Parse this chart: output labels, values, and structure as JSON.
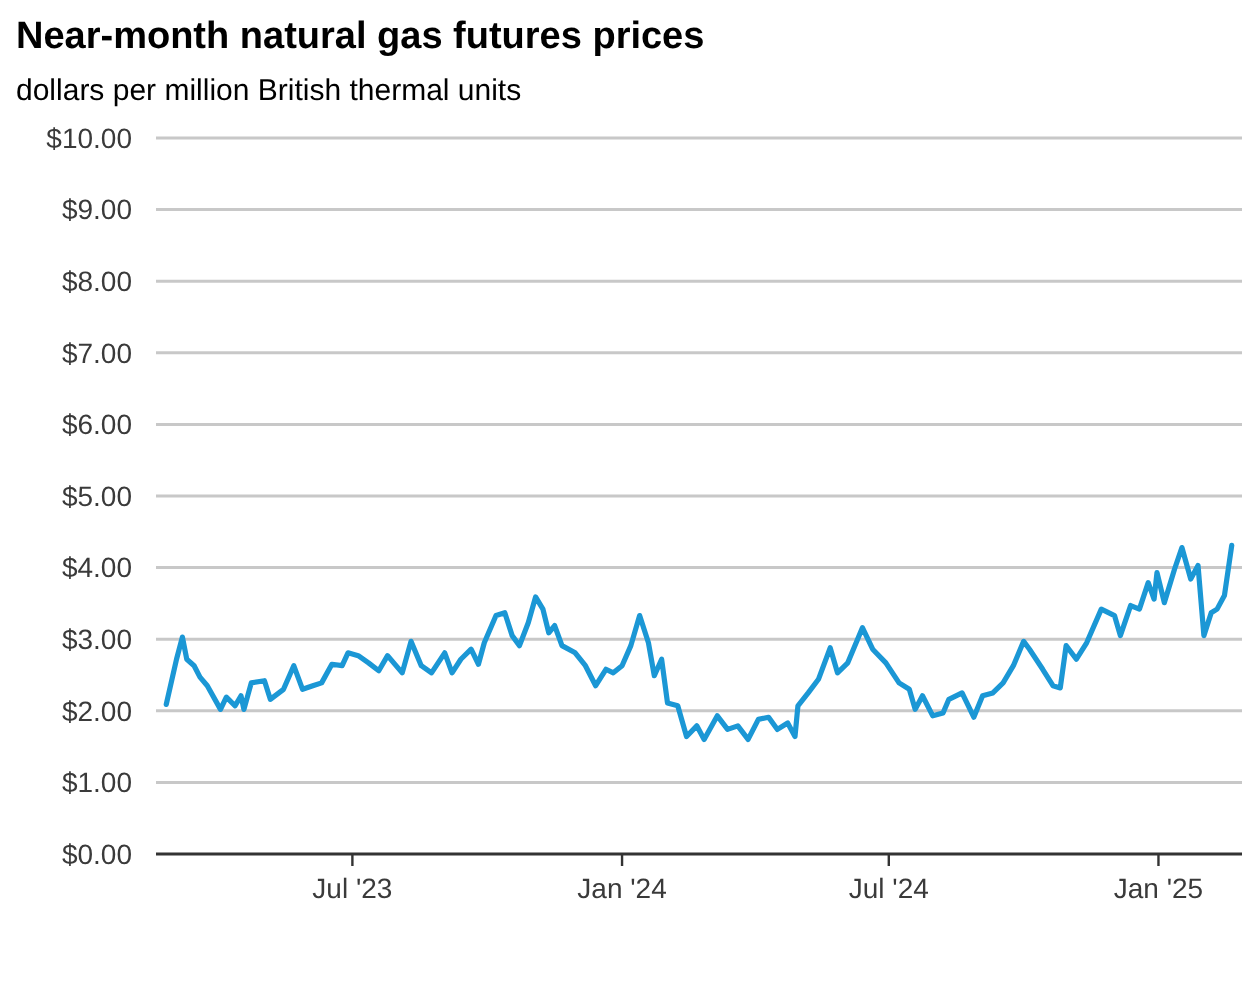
{
  "chart_data": {
    "type": "line",
    "title": "Near-month natural gas futures prices",
    "subtitle": "dollars per million British thermal units",
    "x": [
      "2023-02-24",
      "2023-03-03",
      "2023-03-07",
      "2023-03-10",
      "2023-03-15",
      "2023-03-19",
      "2023-03-24",
      "2023-04-02",
      "2023-04-06",
      "2023-04-12",
      "2023-04-16",
      "2023-04-18",
      "2023-04-23",
      "2023-05-02",
      "2023-05-06",
      "2023-05-15",
      "2023-05-22",
      "2023-05-28",
      "2023-06-04",
      "2023-06-10",
      "2023-06-17",
      "2023-06-24",
      "2023-06-28",
      "2023-07-05",
      "2023-07-12",
      "2023-07-19",
      "2023-07-25",
      "2023-08-04",
      "2023-08-10",
      "2023-08-17",
      "2023-08-24",
      "2023-09-02",
      "2023-09-07",
      "2023-09-13",
      "2023-09-20",
      "2023-09-25",
      "2023-09-29",
      "2023-10-07",
      "2023-10-13",
      "2023-10-18",
      "2023-10-23",
      "2023-10-29",
      "2023-11-03",
      "2023-11-08",
      "2023-11-12",
      "2023-11-16",
      "2023-11-21",
      "2023-11-30",
      "2023-12-07",
      "2023-12-14",
      "2023-12-21",
      "2023-12-26",
      "2024-01-01",
      "2024-01-07",
      "2024-01-13",
      "2024-01-19",
      "2024-01-23",
      "2024-01-28",
      "2024-02-01",
      "2024-02-08",
      "2024-02-14",
      "2024-02-21",
      "2024-02-26",
      "2024-03-06",
      "2024-03-13",
      "2024-03-20",
      "2024-03-27",
      "2024-04-03",
      "2024-04-10",
      "2024-04-16",
      "2024-04-23",
      "2024-04-28",
      "2024-04-30",
      "2024-05-07",
      "2024-05-14",
      "2024-05-22",
      "2024-05-27",
      "2024-06-03",
      "2024-06-13",
      "2024-06-20",
      "2024-06-29",
      "2024-07-08",
      "2024-07-15",
      "2024-07-19",
      "2024-07-24",
      "2024-07-31",
      "2024-08-07",
      "2024-08-11",
      "2024-08-20",
      "2024-08-28",
      "2024-09-03",
      "2024-09-10",
      "2024-09-17",
      "2024-09-24",
      "2024-10-01",
      "2024-10-05",
      "2024-10-14",
      "2024-10-21",
      "2024-10-26",
      "2024-10-30",
      "2024-11-06",
      "2024-11-13",
      "2024-11-23",
      "2024-12-02",
      "2024-12-06",
      "2024-12-13",
      "2024-12-19",
      "2024-12-25",
      "2024-12-29",
      "2024-12-31",
      "2025-01-05",
      "2025-01-12",
      "2025-01-17",
      "2025-01-23",
      "2025-01-28",
      "2025-02-01",
      "2025-02-06",
      "2025-02-10",
      "2025-02-15",
      "2025-02-20"
    ],
    "series": [
      {
        "color": "#1b97d5",
        "values": [
          2.09,
          2.72,
          3.03,
          2.72,
          2.63,
          2.47,
          2.35,
          2.02,
          2.19,
          2.07,
          2.21,
          2.02,
          2.39,
          2.42,
          2.16,
          2.3,
          2.63,
          2.3,
          2.35,
          2.39,
          2.65,
          2.63,
          2.81,
          2.77,
          2.67,
          2.56,
          2.77,
          2.53,
          2.97,
          2.63,
          2.53,
          2.81,
          2.53,
          2.72,
          2.86,
          2.65,
          2.95,
          3.33,
          3.37,
          3.05,
          2.91,
          3.23,
          3.59,
          3.42,
          3.09,
          3.19,
          2.91,
          2.81,
          2.63,
          2.35,
          2.58,
          2.53,
          2.63,
          2.91,
          3.33,
          2.95,
          2.49,
          2.72,
          2.11,
          2.07,
          1.64,
          1.79,
          1.6,
          1.93,
          1.74,
          1.79,
          1.6,
          1.88,
          1.91,
          1.74,
          1.83,
          1.64,
          2.07,
          2.25,
          2.44,
          2.88,
          2.53,
          2.67,
          3.16,
          2.86,
          2.67,
          2.39,
          2.3,
          2.02,
          2.21,
          1.93,
          1.97,
          2.16,
          2.25,
          1.91,
          2.21,
          2.25,
          2.39,
          2.63,
          2.97,
          2.86,
          2.58,
          2.35,
          2.32,
          2.91,
          2.72,
          2.95,
          3.42,
          3.33,
          3.05,
          3.47,
          3.42,
          3.79,
          3.56,
          3.93,
          3.51,
          3.98,
          4.28,
          3.84,
          4.03,
          3.05,
          3.37,
          3.42,
          3.61,
          4.31
        ]
      }
    ],
    "xlim": [
      "2023-02-17",
      "2025-02-27"
    ],
    "xticks": [
      {
        "value": "2023-07-01",
        "label": "Jul '23"
      },
      {
        "value": "2024-01-01",
        "label": "Jan '24"
      },
      {
        "value": "2024-07-01",
        "label": "Jul '24"
      },
      {
        "value": "2025-01-01",
        "label": "Jan '25"
      }
    ],
    "ylim": [
      0,
      10
    ],
    "yticks": [
      {
        "value": 0,
        "label": "$0.00"
      },
      {
        "value": 1,
        "label": "$1.00"
      },
      {
        "value": 2,
        "label": "$2.00"
      },
      {
        "value": 3,
        "label": "$3.00"
      },
      {
        "value": 4,
        "label": "$4.00"
      },
      {
        "value": 5,
        "label": "$5.00"
      },
      {
        "value": 6,
        "label": "$6.00"
      },
      {
        "value": 7,
        "label": "$7.00"
      },
      {
        "value": 8,
        "label": "$8.00"
      },
      {
        "value": 9,
        "label": "$9.00"
      },
      {
        "value": 10,
        "label": "$10.00"
      }
    ],
    "grid": "y",
    "marker": "none",
    "line_style": "solid"
  }
}
